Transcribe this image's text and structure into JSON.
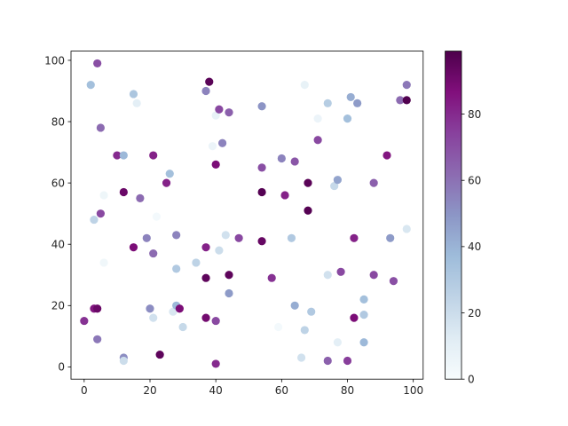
{
  "chart_data": {
    "type": "scatter",
    "title": "",
    "xlabel": "",
    "ylabel": "",
    "xlim": [
      -4,
      103
    ],
    "ylim": [
      -4,
      103
    ],
    "x_ticks": [
      0,
      20,
      40,
      60,
      80,
      100
    ],
    "y_ticks": [
      0,
      20,
      40,
      60,
      80,
      100
    ],
    "grid": false,
    "colormap": "BuPu",
    "colorbar": {
      "min": 0,
      "max": 99,
      "ticks": [
        0,
        20,
        40,
        60,
        80
      ]
    },
    "points": [
      {
        "x": 0,
        "y": 15,
        "c": 78
      },
      {
        "x": 2,
        "y": 92,
        "c": 35
      },
      {
        "x": 3,
        "y": 48,
        "c": 25
      },
      {
        "x": 3,
        "y": 19,
        "c": 85
      },
      {
        "x": 4,
        "y": 99,
        "c": 70
      },
      {
        "x": 4,
        "y": 19,
        "c": 92
      },
      {
        "x": 4,
        "y": 9,
        "c": 58
      },
      {
        "x": 5,
        "y": 78,
        "c": 62
      },
      {
        "x": 5,
        "y": 50,
        "c": 72
      },
      {
        "x": 6,
        "y": 56,
        "c": 5
      },
      {
        "x": 6,
        "y": 34,
        "c": 4
      },
      {
        "x": 10,
        "y": 69,
        "c": 80
      },
      {
        "x": 12,
        "y": 69,
        "c": 38
      },
      {
        "x": 12,
        "y": 57,
        "c": 92
      },
      {
        "x": 12,
        "y": 3,
        "c": 52
      },
      {
        "x": 12,
        "y": 2,
        "c": 20
      },
      {
        "x": 15,
        "y": 89,
        "c": 32
      },
      {
        "x": 15,
        "y": 39,
        "c": 88
      },
      {
        "x": 16,
        "y": 86,
        "c": 10
      },
      {
        "x": 17,
        "y": 55,
        "c": 62
      },
      {
        "x": 19,
        "y": 42,
        "c": 55
      },
      {
        "x": 20,
        "y": 19,
        "c": 52
      },
      {
        "x": 21,
        "y": 69,
        "c": 82
      },
      {
        "x": 21,
        "y": 37,
        "c": 62
      },
      {
        "x": 21,
        "y": 16,
        "c": 18
      },
      {
        "x": 22,
        "y": 49,
        "c": 2
      },
      {
        "x": 23,
        "y": 4,
        "c": 95
      },
      {
        "x": 25,
        "y": 60,
        "c": 82
      },
      {
        "x": 26,
        "y": 63,
        "c": 35
      },
      {
        "x": 27,
        "y": 18,
        "c": 15
      },
      {
        "x": 28,
        "y": 43,
        "c": 55
      },
      {
        "x": 28,
        "y": 32,
        "c": 30
      },
      {
        "x": 28,
        "y": 20,
        "c": 38
      },
      {
        "x": 29,
        "y": 19,
        "c": 88
      },
      {
        "x": 30,
        "y": 13,
        "c": 22
      },
      {
        "x": 34,
        "y": 34,
        "c": 25
      },
      {
        "x": 37,
        "y": 90,
        "c": 55
      },
      {
        "x": 37,
        "y": 39,
        "c": 82
      },
      {
        "x": 37,
        "y": 29,
        "c": 95
      },
      {
        "x": 37,
        "y": 16,
        "c": 90
      },
      {
        "x": 38,
        "y": 93,
        "c": 96
      },
      {
        "x": 39,
        "y": 72,
        "c": 6
      },
      {
        "x": 40,
        "y": 82,
        "c": 8
      },
      {
        "x": 40,
        "y": 66,
        "c": 88
      },
      {
        "x": 40,
        "y": 15,
        "c": 72
      },
      {
        "x": 40,
        "y": 1,
        "c": 80
      },
      {
        "x": 41,
        "y": 84,
        "c": 72
      },
      {
        "x": 41,
        "y": 38,
        "c": 20
      },
      {
        "x": 42,
        "y": 73,
        "c": 55
      },
      {
        "x": 43,
        "y": 43,
        "c": 18
      },
      {
        "x": 44,
        "y": 83,
        "c": 65
      },
      {
        "x": 44,
        "y": 30,
        "c": 95
      },
      {
        "x": 44,
        "y": 24,
        "c": 48
      },
      {
        "x": 47,
        "y": 42,
        "c": 72
      },
      {
        "x": 54,
        "y": 85,
        "c": 50
      },
      {
        "x": 54,
        "y": 65,
        "c": 70
      },
      {
        "x": 54,
        "y": 57,
        "c": 97
      },
      {
        "x": 54,
        "y": 41,
        "c": 93
      },
      {
        "x": 57,
        "y": 29,
        "c": 78
      },
      {
        "x": 59,
        "y": 13,
        "c": 2
      },
      {
        "x": 60,
        "y": 68,
        "c": 55
      },
      {
        "x": 61,
        "y": 56,
        "c": 82
      },
      {
        "x": 63,
        "y": 42,
        "c": 30
      },
      {
        "x": 64,
        "y": 67,
        "c": 68
      },
      {
        "x": 64,
        "y": 20,
        "c": 42
      },
      {
        "x": 66,
        "y": 3,
        "c": 18
      },
      {
        "x": 67,
        "y": 92,
        "c": 8
      },
      {
        "x": 67,
        "y": 12,
        "c": 25
      },
      {
        "x": 68,
        "y": 60,
        "c": 96
      },
      {
        "x": 68,
        "y": 51,
        "c": 97
      },
      {
        "x": 69,
        "y": 18,
        "c": 30
      },
      {
        "x": 71,
        "y": 81,
        "c": 6
      },
      {
        "x": 71,
        "y": 74,
        "c": 72
      },
      {
        "x": 74,
        "y": 86,
        "c": 28
      },
      {
        "x": 74,
        "y": 30,
        "c": 18
      },
      {
        "x": 74,
        "y": 2,
        "c": 65
      },
      {
        "x": 76,
        "y": 59,
        "c": 22
      },
      {
        "x": 77,
        "y": 61,
        "c": 45
      },
      {
        "x": 77,
        "y": 8,
        "c": 10
      },
      {
        "x": 78,
        "y": 31,
        "c": 72
      },
      {
        "x": 80,
        "y": 81,
        "c": 35
      },
      {
        "x": 80,
        "y": 2,
        "c": 75
      },
      {
        "x": 81,
        "y": 88,
        "c": 42
      },
      {
        "x": 82,
        "y": 42,
        "c": 82
      },
      {
        "x": 82,
        "y": 16,
        "c": 88
      },
      {
        "x": 83,
        "y": 86,
        "c": 48
      },
      {
        "x": 85,
        "y": 22,
        "c": 35
      },
      {
        "x": 85,
        "y": 17,
        "c": 30
      },
      {
        "x": 85,
        "y": 8,
        "c": 38
      },
      {
        "x": 88,
        "y": 60,
        "c": 65
      },
      {
        "x": 88,
        "y": 30,
        "c": 72
      },
      {
        "x": 92,
        "y": 69,
        "c": 85
      },
      {
        "x": 93,
        "y": 42,
        "c": 48
      },
      {
        "x": 94,
        "y": 28,
        "c": 70
      },
      {
        "x": 96,
        "y": 87,
        "c": 62
      },
      {
        "x": 98,
        "y": 92,
        "c": 58
      },
      {
        "x": 98,
        "y": 87,
        "c": 98
      },
      {
        "x": 98,
        "y": 45,
        "c": 15
      }
    ]
  }
}
